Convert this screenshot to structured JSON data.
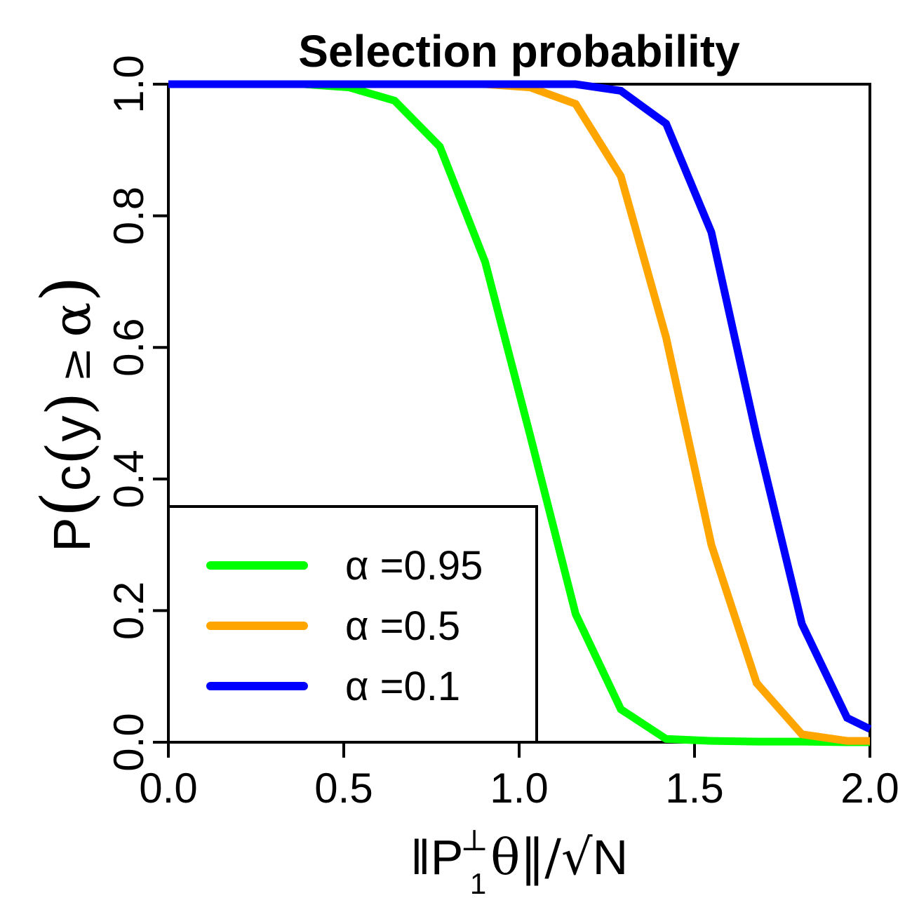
{
  "chart_data": {
    "type": "line",
    "title": "Selection probability",
    "xlim": [
      0.0,
      2.0
    ],
    "ylim": [
      0.0,
      1.0
    ],
    "x_ticks": [
      "0.0",
      "0.5",
      "1.0",
      "1.5",
      "2.0"
    ],
    "y_ticks": [
      "0.0",
      "0.2",
      "0.4",
      "0.6",
      "0.8",
      "1.0"
    ],
    "xlabel": {
      "prefix": "‖P",
      "sup": "⊥",
      "sub": "1",
      "middle": "θ‖/",
      "sqrt": "√",
      "sqrt_arg": "N"
    },
    "ylabel": {
      "p": "P",
      "lparen": "(",
      "c": "c",
      "lparen2": "(",
      "y": "y",
      "rparen2": ")",
      "geq": "≥",
      "alpha": "α",
      "rparen": ")"
    },
    "grid": false,
    "legend_position": "bottom-left",
    "series": [
      {
        "name": "α =0.95",
        "color": "#00ff00",
        "x": [
          0.0,
          0.129,
          0.258,
          0.387,
          0.516,
          0.645,
          0.774,
          0.903,
          1.032,
          1.161,
          1.29,
          1.419,
          1.548,
          1.677,
          1.806,
          1.935,
          2.0
        ],
        "y": [
          1.0,
          1.0,
          1.0,
          1.0,
          0.995,
          0.975,
          0.905,
          0.73,
          0.465,
          0.195,
          0.05,
          0.005,
          0.002,
          0.001,
          0.001,
          0.0,
          0.0
        ]
      },
      {
        "name": "α =0.5",
        "color": "#ffa500",
        "x": [
          0.0,
          0.129,
          0.258,
          0.387,
          0.516,
          0.645,
          0.774,
          0.903,
          1.032,
          1.161,
          1.29,
          1.419,
          1.548,
          1.677,
          1.806,
          1.935,
          2.0
        ],
        "y": [
          1.0,
          1.0,
          1.0,
          1.0,
          1.0,
          1.0,
          1.0,
          1.0,
          0.995,
          0.97,
          0.86,
          0.615,
          0.3,
          0.09,
          0.012,
          0.002,
          0.002
        ]
      },
      {
        "name": "α =0.1",
        "color": "#0000ff",
        "x": [
          0.0,
          0.129,
          0.258,
          0.387,
          0.516,
          0.645,
          0.774,
          0.903,
          1.032,
          1.161,
          1.29,
          1.419,
          1.548,
          1.677,
          1.806,
          1.935,
          2.0
        ],
        "y": [
          1.0,
          1.0,
          1.0,
          1.0,
          1.0,
          1.0,
          1.0,
          1.0,
          1.0,
          1.0,
          0.99,
          0.94,
          0.775,
          0.465,
          0.18,
          0.037,
          0.02
        ]
      }
    ]
  }
}
